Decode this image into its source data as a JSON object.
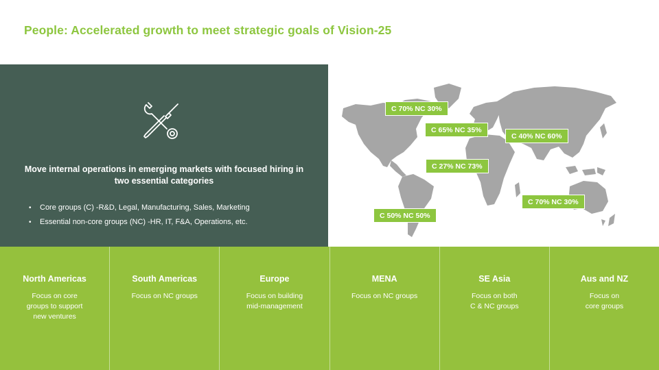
{
  "title": "People: Accelerated growth to meet strategic goals of Vision-25",
  "panel": {
    "icon": "wrench-screwdriver-icon",
    "headline": "Move internal operations in emerging markets with focused hiring in two essential categories",
    "bullets": [
      "Core groups (C) -R&D, Legal, Manufacturing, Sales, Marketing",
      "Essential non-core groups (NC) -HR, IT, F&A, Operations, etc."
    ]
  },
  "map": {
    "icon": "world-map",
    "labels": [
      "C 70% NC 30%",
      "C 65% NC 35%",
      "C 40% NC 60%",
      "C 27% NC 73%",
      "C 70% NC 30%",
      "C 50% NC 50%"
    ]
  },
  "regions": [
    {
      "name": "North Americas",
      "text": "Focus on core\ngroups to support\nnew ventures"
    },
    {
      "name": "South Americas",
      "text": "Focus on NC groups"
    },
    {
      "name": "Europe",
      "text": "Focus on building\nmid-management"
    },
    {
      "name": "MENA",
      "text": "Focus on NC groups"
    },
    {
      "name": "SE Asia",
      "text": "Focus on both\nC & NC groups"
    },
    {
      "name": "Aus and NZ",
      "text": "Focus on\ncore groups"
    }
  ],
  "colors": {
    "accent": "#8dc63f",
    "dark_panel": "#455e54",
    "bottom": "#95c13d",
    "map": "#a6a6a6"
  }
}
